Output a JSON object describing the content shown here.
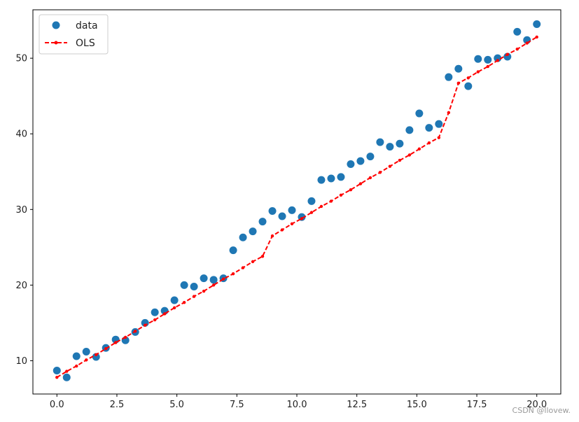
{
  "chart_data": {
    "type": "scatter",
    "title": "",
    "xlabel": "",
    "ylabel": "",
    "xlim": [
      -1.0,
      21.0
    ],
    "ylim": [
      5.6,
      56.4
    ],
    "x_ticks": [
      0.0,
      2.5,
      5.0,
      7.5,
      10.0,
      12.5,
      15.0,
      17.5,
      20.0
    ],
    "x_tick_labels": [
      "0.0",
      "2.5",
      "5.0",
      "7.5",
      "10.0",
      "12.5",
      "15.0",
      "17.5",
      "20.0"
    ],
    "y_ticks": [
      10,
      20,
      30,
      40,
      50
    ],
    "y_tick_labels": [
      "10",
      "20",
      "30",
      "40",
      "50"
    ],
    "grid": false,
    "legend": {
      "placement": "top-left",
      "entries": [
        "data",
        "OLS"
      ]
    },
    "series": [
      {
        "name": "data",
        "kind": "scatter",
        "color": "#1f77b4",
        "x": [
          0.0,
          0.408,
          0.816,
          1.224,
          1.633,
          2.041,
          2.449,
          2.857,
          3.265,
          3.673,
          4.082,
          4.49,
          4.898,
          5.306,
          5.714,
          6.122,
          6.531,
          6.939,
          7.347,
          7.755,
          8.163,
          8.571,
          8.98,
          9.388,
          9.796,
          10.204,
          10.612,
          11.02,
          11.429,
          11.837,
          12.245,
          12.653,
          13.061,
          13.469,
          13.878,
          14.286,
          14.694,
          15.102,
          15.51,
          15.918,
          16.327,
          16.735,
          17.143,
          17.551,
          17.959,
          18.367,
          18.776,
          19.184,
          19.592,
          20.0
        ],
        "y": [
          8.7,
          7.8,
          10.6,
          11.2,
          10.5,
          11.7,
          12.8,
          12.7,
          13.8,
          15.0,
          16.4,
          16.6,
          18.0,
          20.0,
          19.8,
          20.9,
          20.7,
          20.9,
          24.6,
          26.3,
          27.1,
          28.4,
          29.8,
          29.1,
          29.9,
          29.0,
          31.1,
          33.9,
          34.1,
          34.3,
          36.0,
          36.4,
          37.0,
          38.9,
          38.3,
          38.7,
          40.5,
          42.7,
          40.8,
          41.3,
          47.5,
          48.6,
          46.3,
          49.9,
          49.8,
          50.0,
          50.2,
          53.5,
          52.4,
          54.5
        ]
      },
      {
        "name": "OLS",
        "kind": "line",
        "line_style": "dashed",
        "marker": "dot",
        "color": "#ff0000",
        "x": [
          0.0,
          0.408,
          0.816,
          1.224,
          1.633,
          2.041,
          2.449,
          2.857,
          3.265,
          3.673,
          4.082,
          4.49,
          4.898,
          5.306,
          5.714,
          6.122,
          6.531,
          6.939,
          7.347,
          7.755,
          8.163,
          8.571,
          8.98,
          9.388,
          9.796,
          10.204,
          10.612,
          11.02,
          11.429,
          11.837,
          12.245,
          12.653,
          13.061,
          13.469,
          13.878,
          14.286,
          14.694,
          15.102,
          15.51,
          15.918,
          16.327,
          16.735,
          17.143,
          17.551,
          17.959,
          18.367,
          18.776,
          19.184,
          19.592,
          20.0
        ],
        "y": [
          7.8,
          8.6,
          9.3,
          10.1,
          10.8,
          11.6,
          12.4,
          13.1,
          13.9,
          14.7,
          15.4,
          16.2,
          17.0,
          17.7,
          18.5,
          19.2,
          20.0,
          20.8,
          21.5,
          22.3,
          23.1,
          23.8,
          26.5,
          27.3,
          28.1,
          28.8,
          29.6,
          30.4,
          31.1,
          31.9,
          32.6,
          33.4,
          34.2,
          34.9,
          35.7,
          36.5,
          37.2,
          38.0,
          38.8,
          39.5,
          42.8,
          46.7,
          47.4,
          48.2,
          48.9,
          49.7,
          50.5,
          51.2,
          52.0,
          52.8
        ]
      }
    ]
  },
  "watermark": "CSDN @llovew."
}
